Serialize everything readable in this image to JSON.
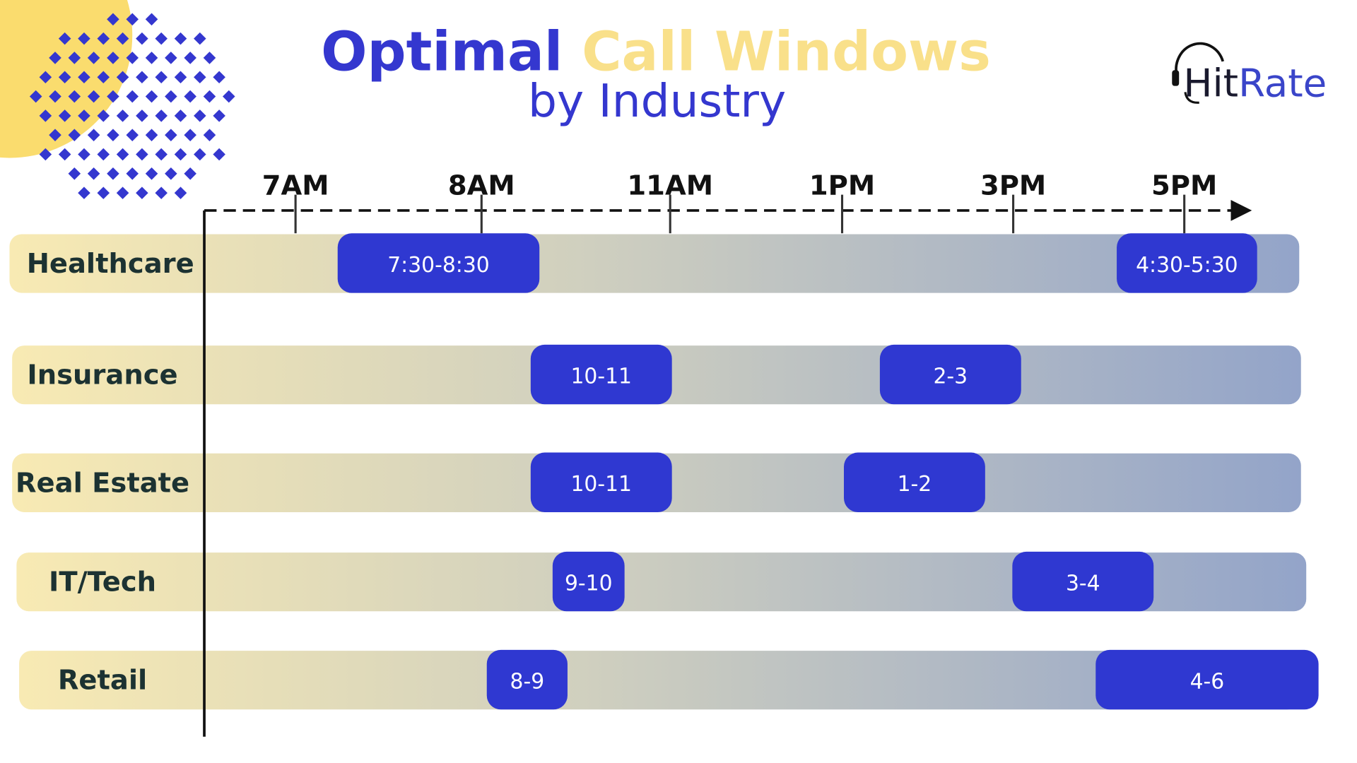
{
  "title": {
    "part1": "Optimal",
    "part2": "Call Windows",
    "subtitle": "by Industry"
  },
  "logo": {
    "part1": "Hit",
    "part2": "Rate"
  },
  "time_axis": [
    "7AM",
    "8AM",
    "11AM",
    "1PM",
    "3PM",
    "5PM"
  ],
  "rows": [
    {
      "name": "Healthcare",
      "windows": [
        "7:30-8:30",
        "4:30-5:30"
      ]
    },
    {
      "name": "Insurance",
      "windows": [
        "10-11",
        "2-3"
      ]
    },
    {
      "name": "Real Estate",
      "windows": [
        "10-11",
        "1-2"
      ]
    },
    {
      "name": "IT/Tech",
      "windows": [
        "9-10",
        "3-4"
      ]
    },
    {
      "name": "Retail",
      "windows": [
        "8-9",
        "4-6"
      ]
    }
  ]
}
